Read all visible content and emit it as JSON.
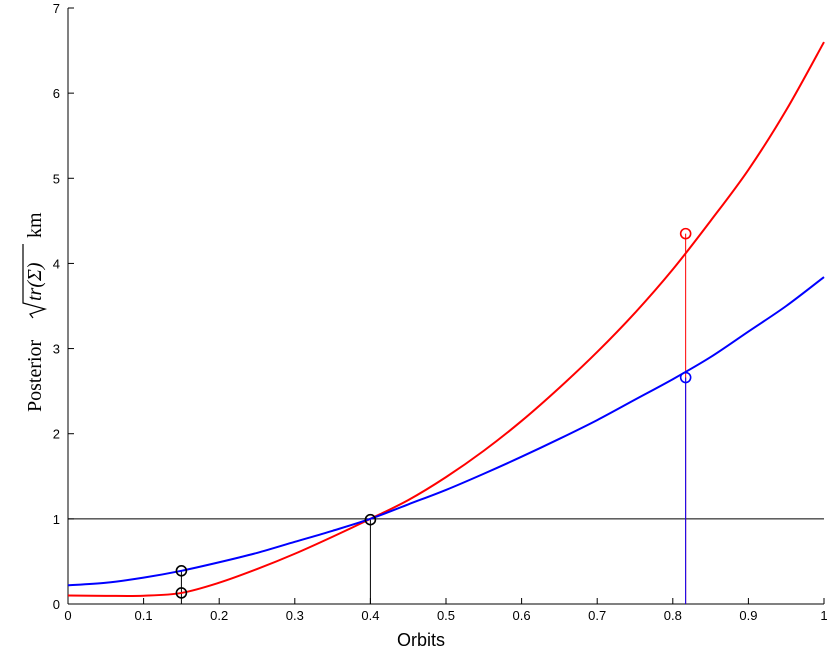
{
  "chart_data": {
    "type": "line",
    "xlabel": "Orbits",
    "ylabel": {
      "prefix": "Posterior",
      "math": "tr(Σ)",
      "unit": "km"
    },
    "xlim": [
      0,
      1
    ],
    "ylim": [
      0,
      7
    ],
    "xticks": [
      0,
      0.1,
      0.2,
      0.3,
      0.4,
      0.5,
      0.6,
      0.7,
      0.8,
      0.9,
      1
    ],
    "xtick_labels": [
      "0",
      "0.1",
      "0.2",
      "0.3",
      "0.4",
      "0.5",
      "0.6",
      "0.7",
      "0.8",
      "0.9",
      "1"
    ],
    "yticks": [
      0,
      1,
      2,
      3,
      4,
      5,
      6,
      7
    ],
    "ytick_labels": [
      "0",
      "1",
      "2",
      "3",
      "4",
      "5",
      "6",
      "7"
    ],
    "grid": false,
    "series": [
      {
        "color": "#ff0000",
        "x": [
          0,
          0.05,
          0.1,
          0.15,
          0.2,
          0.25,
          0.3,
          0.35,
          0.4,
          0.45,
          0.5,
          0.55,
          0.6,
          0.65,
          0.7,
          0.75,
          0.8,
          0.85,
          0.9,
          0.95,
          1.0
        ],
        "y": [
          0.1,
          0.096,
          0.097,
          0.13,
          0.25,
          0.41,
          0.59,
          0.79,
          1.0,
          1.22,
          1.49,
          1.8,
          2.15,
          2.54,
          2.96,
          3.42,
          3.93,
          4.5,
          5.1,
          5.8,
          6.6
        ]
      },
      {
        "color": "#0000ff",
        "x": [
          0,
          0.05,
          0.1,
          0.15,
          0.2,
          0.25,
          0.3,
          0.35,
          0.4,
          0.45,
          0.5,
          0.55,
          0.6,
          0.65,
          0.7,
          0.75,
          0.8,
          0.85,
          0.9,
          0.95,
          1.0
        ],
        "y": [
          0.22,
          0.25,
          0.31,
          0.39,
          0.49,
          0.6,
          0.73,
          0.86,
          1.0,
          1.17,
          1.34,
          1.53,
          1.73,
          1.94,
          2.16,
          2.4,
          2.64,
          2.9,
          3.2,
          3.5,
          3.84
        ]
      }
    ],
    "reference_line": {
      "y": 1,
      "color": "#000000"
    },
    "markers": [
      {
        "x": 0.15,
        "y": 0.39,
        "color": "#000000",
        "drop": true
      },
      {
        "x": 0.15,
        "y": 0.13,
        "color": "#000000",
        "drop": false
      },
      {
        "x": 0.4,
        "y": 0.99,
        "color": "#000000",
        "drop": true
      },
      {
        "x": 0.817,
        "y": 4.35,
        "color": "#ff0000",
        "drop": true
      },
      {
        "x": 0.817,
        "y": 2.66,
        "color": "#0000ff",
        "drop": true
      }
    ]
  }
}
